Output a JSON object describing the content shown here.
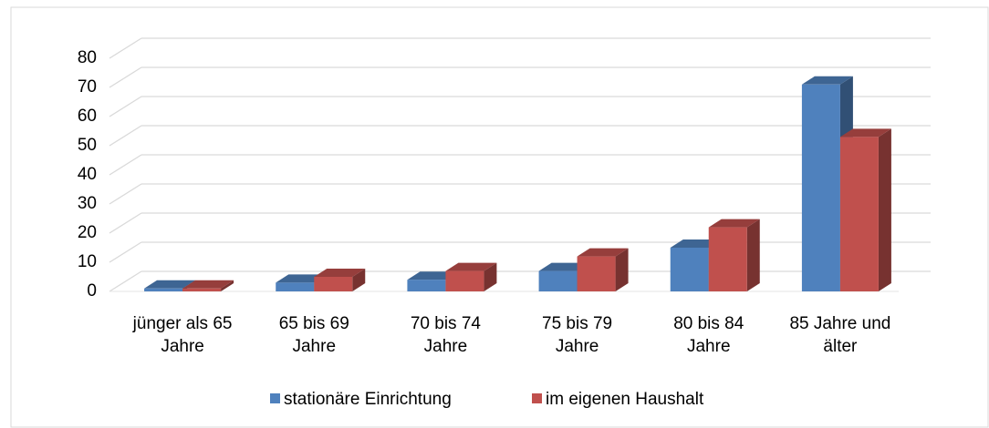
{
  "chart_data": {
    "type": "bar3d",
    "categories": [
      "jünger als 65 Jahre",
      "65 bis 69 Jahre",
      "70 bis 74 Jahre",
      "75 bis 79 Jahre",
      "80 bis 84 Jahre",
      "85 Jahre und älter"
    ],
    "series": [
      {
        "name": "stationäre Einrichtung",
        "color": "#4f81bd",
        "values": [
          1,
          3,
          4,
          7,
          15,
          71
        ]
      },
      {
        "name": "im eigenen Haushalt",
        "color": "#c0504d",
        "values": [
          1,
          5,
          7,
          12,
          22,
          53
        ]
      }
    ],
    "ylim": [
      0,
      80
    ],
    "yticks": [
      0,
      10,
      20,
      30,
      40,
      50,
      60,
      70,
      80
    ],
    "grid": true,
    "legend": "bottom"
  }
}
